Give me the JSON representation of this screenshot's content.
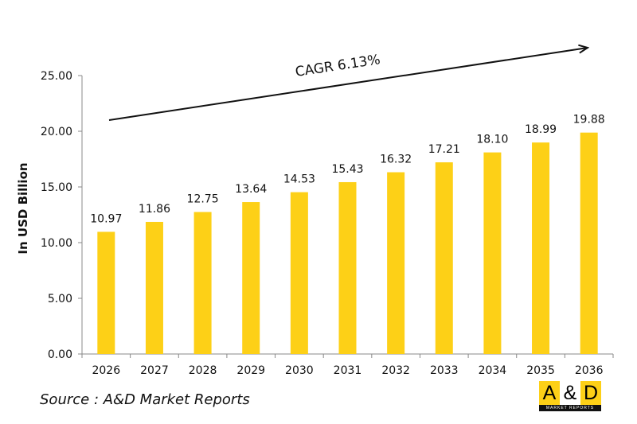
{
  "chart_data": {
    "type": "bar",
    "categories": [
      "2026",
      "2027",
      "2028",
      "2029",
      "2030",
      "2031",
      "2032",
      "2033",
      "2034",
      "2035",
      "2036"
    ],
    "values": [
      10.97,
      11.86,
      12.75,
      13.64,
      14.53,
      15.43,
      16.32,
      17.21,
      18.1,
      18.99,
      19.88
    ],
    "data_labels": [
      "10.97",
      "11.86",
      "12.75",
      "13.64",
      "14.53",
      "15.43",
      "16.32",
      "17.21",
      "18.10",
      "18.99",
      "19.88"
    ],
    "ylabel": "In USD Billion",
    "xlabel": "",
    "ylim": [
      0,
      25
    ],
    "yticks": [
      "0.00",
      "5.00",
      "10.00",
      "15.00",
      "20.00",
      "25.00"
    ],
    "grid": false,
    "bar_color": "#FDD017",
    "annotation": "CAGR 6.13%"
  },
  "source": "Source : A&D Market Reports",
  "logo": {
    "letters": [
      "A",
      "&",
      "D"
    ],
    "subtitle": "MARKET REPORTS",
    "colors": [
      "#FDD017",
      "#ffffff",
      "#FDD017"
    ]
  }
}
